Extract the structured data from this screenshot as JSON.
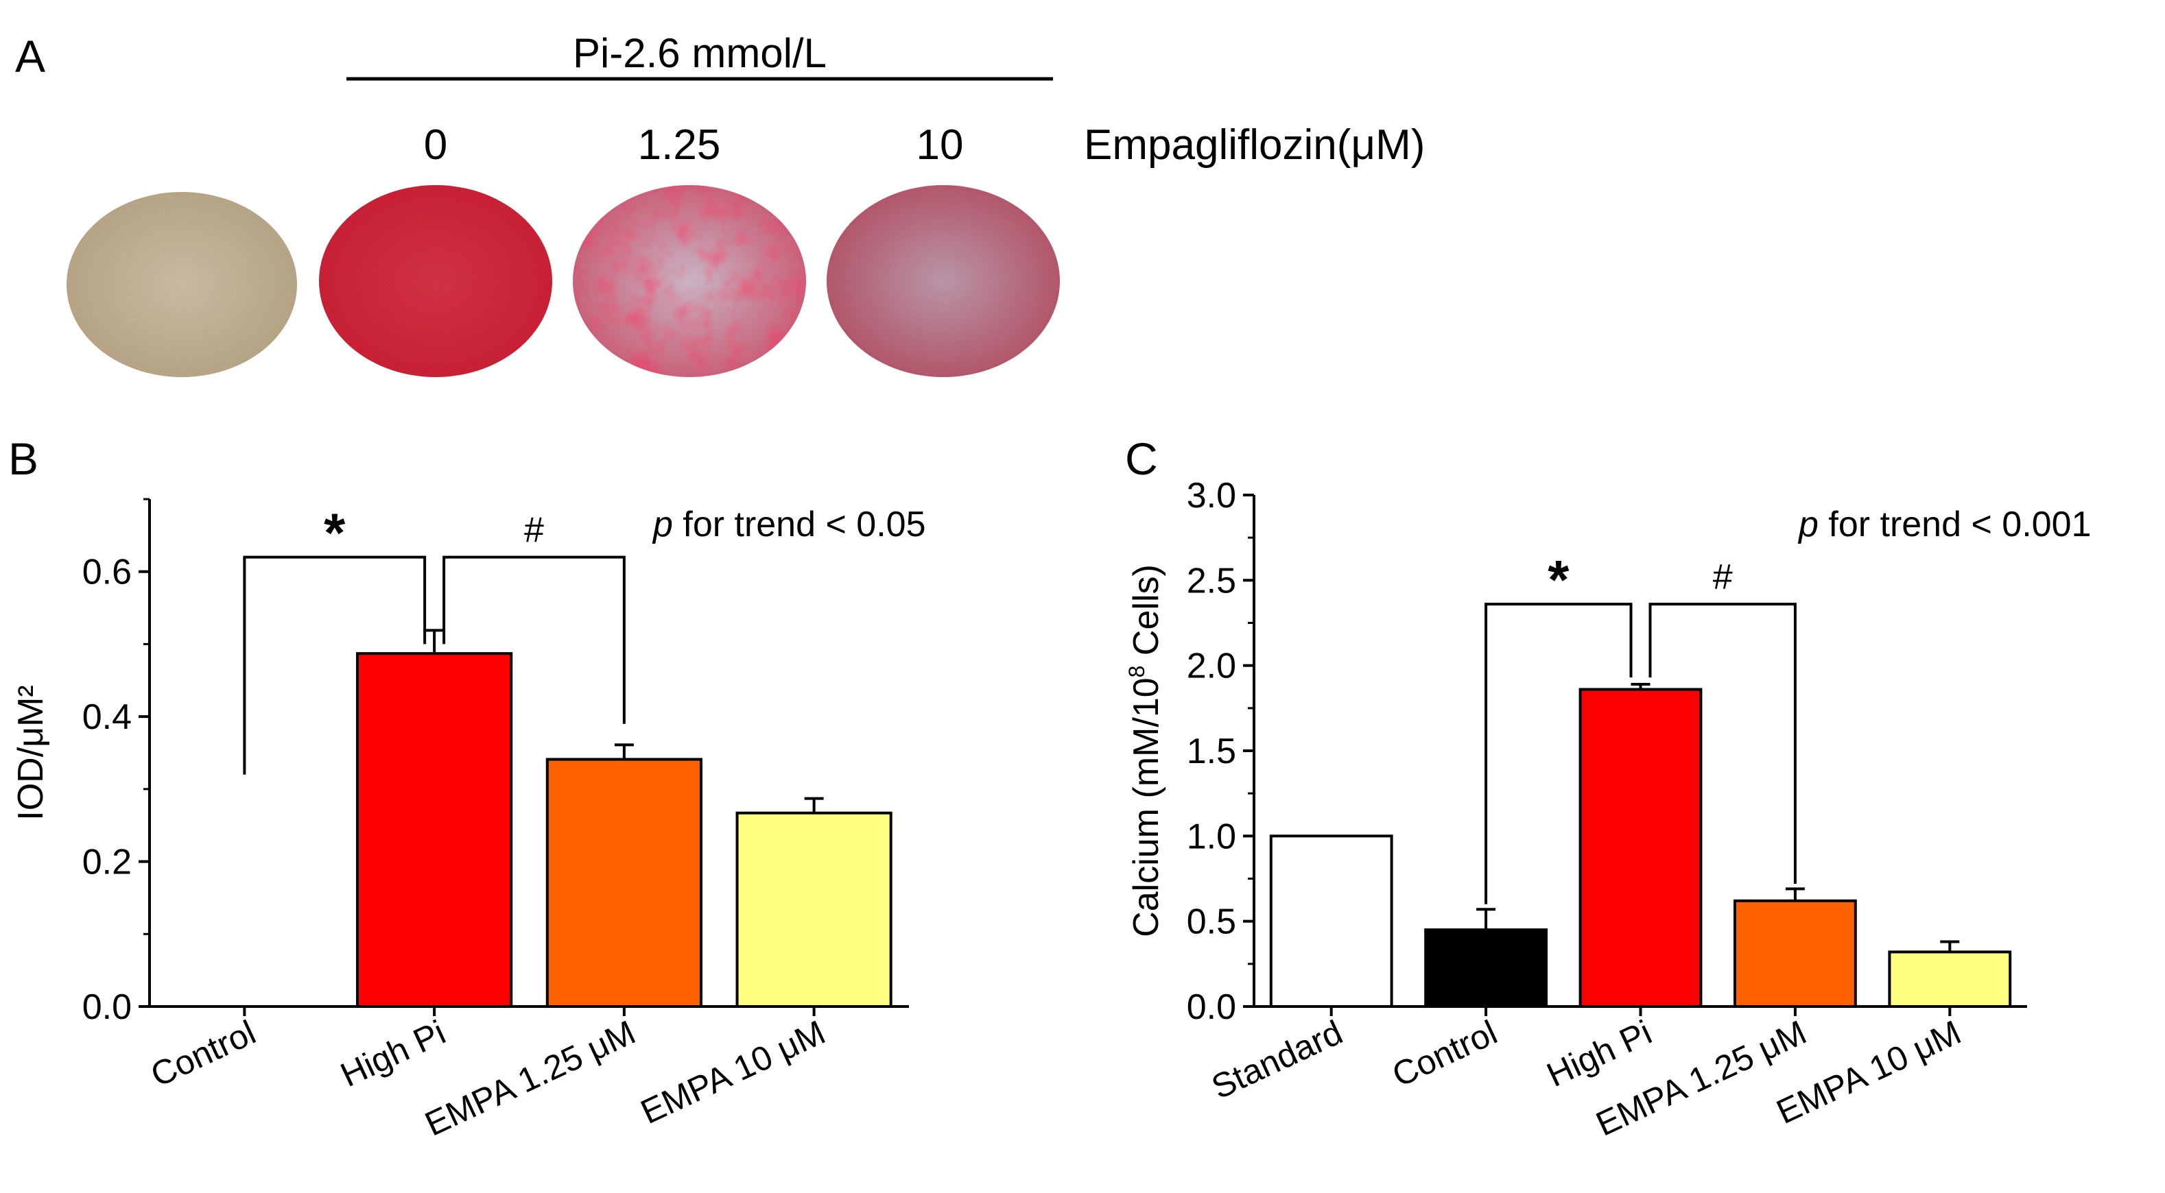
{
  "panel_a": {
    "letter": "A",
    "group_label": "Pi-2.6 mmol/L",
    "concentration_labels": [
      "0",
      "1.25",
      "10"
    ],
    "concentration_title": "Empagliflozin(μM)",
    "wells": [
      {
        "name": "control-well",
        "stain": "beige"
      },
      {
        "name": "high-pi-well",
        "stain": "red-heavy"
      },
      {
        "name": "empa-1-25-well",
        "stain": "red-moderate"
      },
      {
        "name": "empa-10-well",
        "stain": "red-light"
      }
    ]
  },
  "chart_data": [
    {
      "panel": "B",
      "type": "bar",
      "categories": [
        "Control",
        "High Pi",
        "EMPA 1.25 μM",
        "EMPA 10 μM"
      ],
      "values": [
        0.0,
        0.487,
        0.341,
        0.267
      ],
      "errors": [
        0.0,
        0.032,
        0.02,
        0.02
      ],
      "colors": [
        "#ffffff",
        "#ff0000",
        "#ff6000",
        "#ffff80"
      ],
      "ylabel": "IOD/μM²",
      "ylim": [
        0,
        0.7
      ],
      "yticks": [
        0.0,
        0.2,
        0.4,
        0.6
      ],
      "ytick_labels": [
        "0.0",
        "0.2",
        "0.4",
        "0.6"
      ],
      "annotation": {
        "italic": "p",
        "text": " for trend < 0.05"
      },
      "significance": [
        {
          "from": 0,
          "to": 1,
          "symbol": "*",
          "from_y": 0.32,
          "to_y": 0.5,
          "top": 0.62
        },
        {
          "from": 1,
          "to": 2,
          "symbol": "#",
          "from_y": 0.5,
          "to_y": 0.39,
          "top": 0.62
        }
      ],
      "grid": false
    },
    {
      "panel": "C",
      "type": "bar",
      "categories": [
        "Standard",
        "Control",
        "High Pi",
        "EMPA 1.25 μM",
        "EMPA 10 μM"
      ],
      "values": [
        1.0,
        0.45,
        1.86,
        0.62,
        0.32
      ],
      "errors": [
        0.0,
        0.12,
        0.03,
        0.07,
        0.06
      ],
      "colors": [
        "#ffffff",
        "#000000",
        "#ff0000",
        "#ff6000",
        "#ffff80"
      ],
      "ylabel_main": "Calcium (mM/10",
      "ylabel_sup": "8",
      "ylabel_tail": " Cells)",
      "ylim": [
        0,
        3.0
      ],
      "yticks": [
        0.0,
        0.5,
        1.0,
        1.5,
        2.0,
        2.5,
        3.0
      ],
      "ytick_labels": [
        "0.0",
        "0.5",
        "1.0",
        "1.5",
        "2.0",
        "2.5",
        "3.0"
      ],
      "annotation": {
        "italic": "p",
        "text": " for trend < 0.001"
      },
      "significance": [
        {
          "from": 1,
          "to": 2,
          "symbol": "*",
          "from_y": 0.6,
          "to_y": 1.93,
          "top": 2.36
        },
        {
          "from": 2,
          "to": 3,
          "symbol": "#",
          "from_y": 1.93,
          "to_y": 0.72,
          "top": 2.36
        }
      ],
      "grid": false
    }
  ]
}
